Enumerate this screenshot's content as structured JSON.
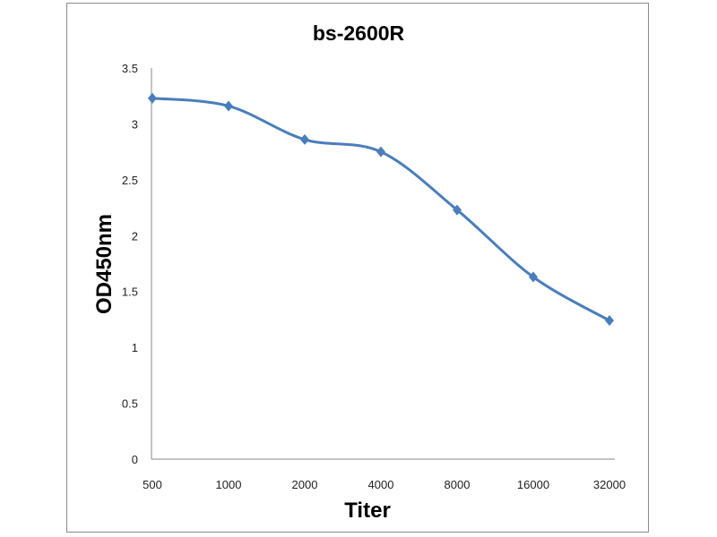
{
  "chart_data": {
    "type": "line",
    "title": "bs-2600R",
    "xlabel": "Titer",
    "ylabel": "OD450nm",
    "categories": [
      "500",
      "1000",
      "2000",
      "4000",
      "8000",
      "16000",
      "32000"
    ],
    "series": [
      {
        "name": "bs-2600R",
        "values": [
          3.23,
          3.16,
          2.86,
          2.75,
          2.23,
          1.63,
          1.24
        ]
      }
    ],
    "ylim": [
      0,
      3.5
    ],
    "yticks": [
      "0",
      "0.5",
      "1",
      "1.5",
      "2",
      "2.5",
      "3",
      "3.5"
    ],
    "grid": false,
    "legend": "none",
    "color": "#4a7ebb"
  }
}
